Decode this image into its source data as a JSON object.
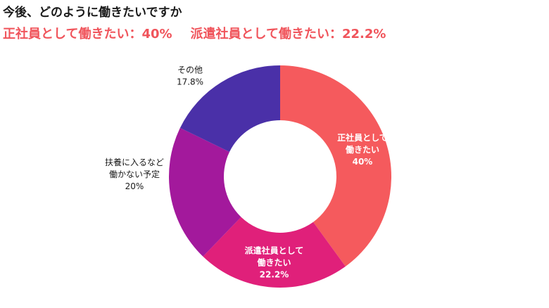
{
  "title": "今後、どのように働きたいですか",
  "subtitle": {
    "left": "正社員として働きたい：40%",
    "right": "派遣社員として働きたい：22.2%"
  },
  "chart_data": {
    "type": "pie",
    "donut": true,
    "title": "今後、どのように働きたいですか",
    "legend": "none",
    "slices": [
      {
        "label_lines": [
          "正社員として",
          "働きたい"
        ],
        "value": 40,
        "value_label": "40%",
        "color": "#f55a5d",
        "label_position": "inside"
      },
      {
        "label_lines": [
          "派遣社員として",
          "働きたい"
        ],
        "value": 22.2,
        "value_label": "22.2%",
        "color": "#e0207a",
        "label_position": "inside"
      },
      {
        "label_lines": [
          "扶養に入るなど",
          "働かない予定"
        ],
        "value": 20,
        "value_label": "20%",
        "color": "#a3199c",
        "label_position": "outside"
      },
      {
        "label_lines": [
          "その他"
        ],
        "value": 17.8,
        "value_label": "17.8%",
        "color": "#4a30a8",
        "label_position": "outside"
      }
    ]
  }
}
